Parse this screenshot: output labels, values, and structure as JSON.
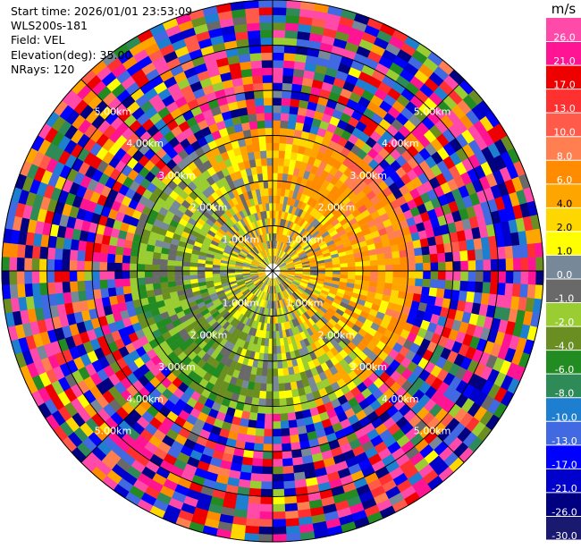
{
  "info": {
    "start_time": "Start time: 2026/01/01 23:53:09",
    "instrument": "WLS200s-181",
    "field": "Field: VEL",
    "elevation": "Elevation(deg): 35.00",
    "nrays": "NRays: 120"
  },
  "chart_data": {
    "type": "heatmap",
    "projection": "polar-ppi",
    "field": "VEL",
    "n_rays": 120,
    "range_rings_km": [
      1.0,
      2.0,
      3.0,
      4.0,
      5.0
    ],
    "ring_label_text": [
      "1.00km",
      "2.00km",
      "3.00km",
      "4.00km",
      "5.00km"
    ],
    "max_range_km": 6.0,
    "colorbar": {
      "unit": "m/s",
      "tick_labels": [
        "26.0",
        "21.0",
        "17.0",
        "13.0",
        "10.0",
        "8.0",
        "6.0",
        "4.0",
        "2.0",
        "1.0",
        "0.0",
        "-1.0",
        "-2.0",
        "-4.0",
        "-6.0",
        "-8.0",
        "-10.0",
        "-13.0",
        "-17.0",
        "-21.0",
        "-26.0",
        "-30.0"
      ],
      "bin_colors": [
        "#ff4aaa",
        "#ff1493",
        "#ee0000",
        "#ff3030",
        "#ff5a4a",
        "#ff7f50",
        "#ff8c00",
        "#ffa500",
        "#ffd700",
        "#ffff00",
        "#778899",
        "#696969",
        "#9acd32",
        "#6b8e23",
        "#228b22",
        "#2e8b57",
        "#1e7fd0",
        "#4169e1",
        "#0000ff",
        "#0000cd",
        "#000080",
        "#191970"
      ]
    }
  }
}
